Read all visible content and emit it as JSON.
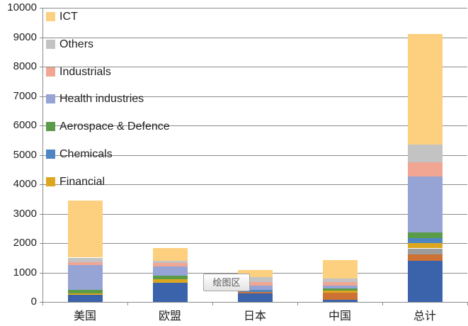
{
  "tooltip": {
    "label": "绘图区"
  },
  "chart_data": {
    "type": "bar",
    "subtype": "stacked-column",
    "title": "",
    "xlabel": "",
    "ylabel": "",
    "ylim": [
      0,
      10000
    ],
    "ytick_step": 1000,
    "grid": true,
    "legend_position": "overlay-top-left",
    "categories": [
      "美国",
      "欧盟",
      "日本",
      "中国",
      "总计"
    ],
    "series": [
      {
        "label": "",
        "color": "#3A63AC",
        "values": [
          240,
          640,
          300,
          80,
          1400
        ]
      },
      {
        "label": "",
        "color": "#CE7234",
        "values": [
          0,
          0,
          40,
          225,
          220
        ]
      },
      {
        "label": "",
        "color": "#9C9C9C",
        "values": [
          0,
          0,
          0,
          0,
          200
        ]
      },
      {
        "label": "Financial",
        "color": "#DCA71E",
        "values": [
          50,
          130,
          0,
          90,
          185
        ]
      },
      {
        "label": "Chemicals",
        "color": "#4E86C3",
        "values": [
          0,
          0,
          75,
          0,
          160
        ]
      },
      {
        "label": "Aerospace & Defence",
        "color": "#5A9B47",
        "values": [
          120,
          120,
          0,
          60,
          200
        ]
      },
      {
        "label": "Health industries",
        "color": "#95A4D5",
        "values": [
          850,
          305,
          145,
          95,
          1900
        ]
      },
      {
        "label": "Industrials",
        "color": "#F0A692",
        "values": [
          100,
          120,
          120,
          120,
          480
        ]
      },
      {
        "label": "Others",
        "color": "#C3C3C3",
        "values": [
          145,
          90,
          170,
          120,
          610
        ]
      },
      {
        "label": "ICT",
        "color": "#FCD07E",
        "values": [
          1935,
          425,
          240,
          630,
          3750
        ]
      }
    ],
    "category_totals": [
      3440,
      1830,
      1090,
      1420,
      9105
    ],
    "legend": [
      "ICT",
      "Others",
      "Industrials",
      "Health industries",
      "Aerospace & Defence",
      "Chemicals",
      "Financial"
    ],
    "colors": {
      "gridline": "#8b8b8b",
      "axis": "#8b8b8b",
      "text": "#1f1f1f"
    }
  }
}
